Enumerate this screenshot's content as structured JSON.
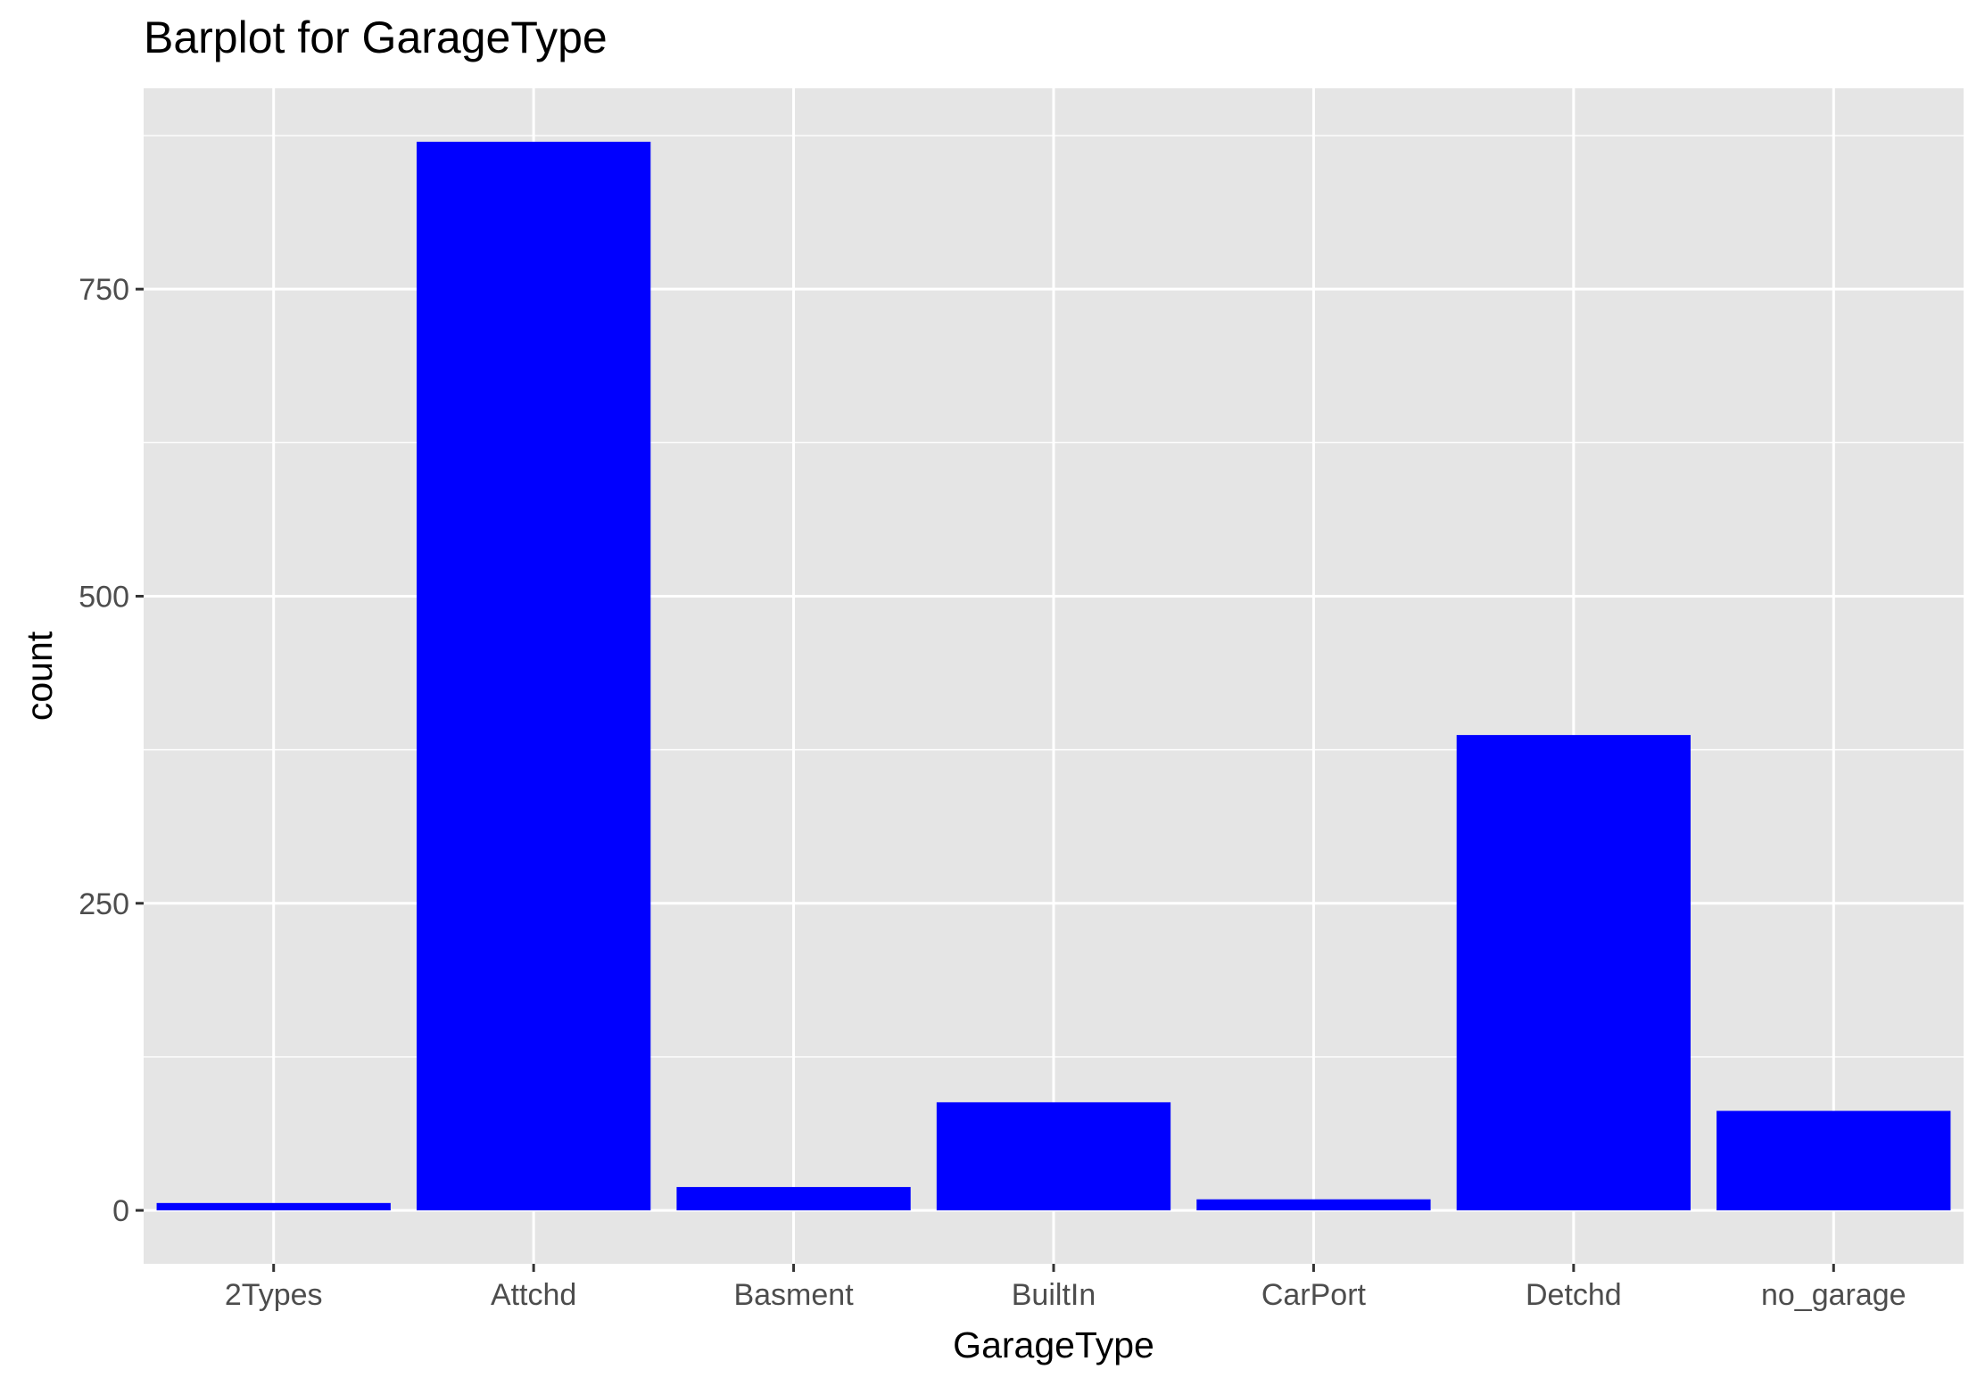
{
  "chart_data": {
    "type": "bar",
    "title": "Barplot for GarageType",
    "xlabel": "GarageType",
    "ylabel": "count",
    "categories": [
      "2Types",
      "Attchd",
      "Basment",
      "BuiltIn",
      "CarPort",
      "Detchd",
      "no_garage"
    ],
    "values": [
      6,
      870,
      19,
      88,
      9,
      387,
      81
    ],
    "ylim": [
      -43.5,
      913.5
    ],
    "yticks": [
      0,
      250,
      500,
      750
    ],
    "ytick_labels": [
      "0",
      "250",
      "500",
      "750"
    ],
    "grid": true,
    "legend": "none",
    "colors": {
      "bar": "#0000ff",
      "panel": "#e5e5e5",
      "gridline": "#ffffff",
      "tick_text": "#4d4d4d",
      "tick_mark": "#333333"
    }
  }
}
